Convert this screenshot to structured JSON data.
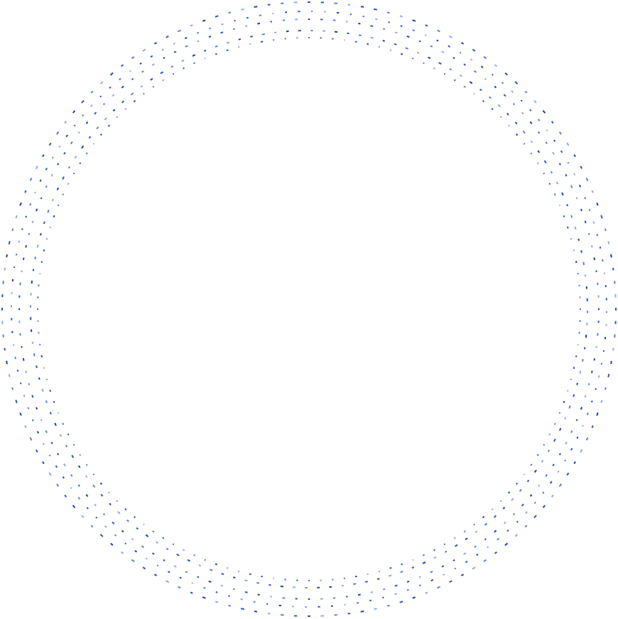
{
  "diagram": {
    "type": "circular-label-ring",
    "background_color": "#ffffff",
    "mark_colors": [
      "#1a3fb0",
      "#2a55c8",
      "#5b7fd8",
      "#8fa8e6"
    ],
    "rings": [
      {
        "name": "outer-ring"
      },
      {
        "name": "ring-2"
      },
      {
        "name": "ring-3"
      },
      {
        "name": "ring-4"
      },
      {
        "name": "inner-ring"
      }
    ]
  }
}
